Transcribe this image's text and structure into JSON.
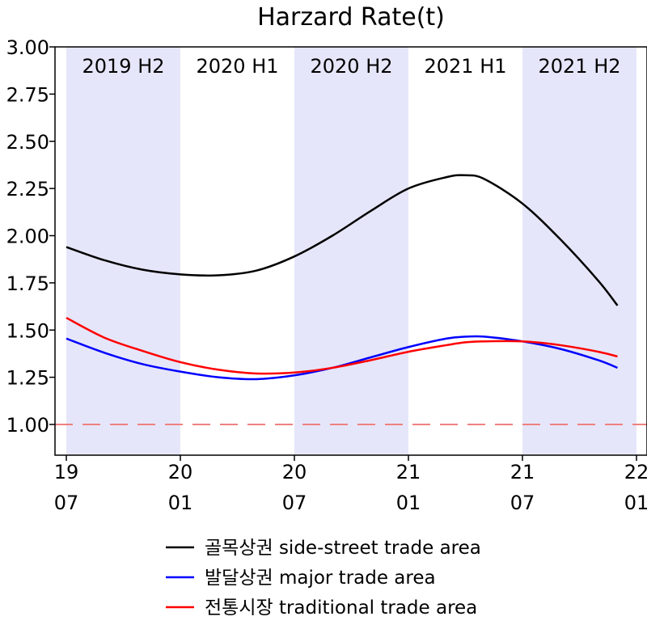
{
  "chart_data": {
    "type": "line",
    "title": "Harzard Rate(t)",
    "xlabel": "",
    "ylabel": "",
    "ylim": [
      0.85,
      3.0
    ],
    "y_ticks": [
      "3.00",
      "2.75",
      "2.50",
      "2.25",
      "2.00",
      "1.75",
      "1.50",
      "1.25",
      "1.00"
    ],
    "y_tick_values": [
      3.0,
      2.75,
      2.5,
      2.25,
      2.0,
      1.75,
      1.5,
      1.25,
      1.0
    ],
    "x_ticks": [
      {
        "top": "19",
        "bottom": "07",
        "month": 0
      },
      {
        "top": "20",
        "bottom": "01",
        "month": 6
      },
      {
        "top": "20",
        "bottom": "07",
        "month": 12
      },
      {
        "top": "21",
        "bottom": "01",
        "month": 18
      },
      {
        "top": "21",
        "bottom": "07",
        "month": 24
      },
      {
        "top": "22",
        "bottom": "01",
        "month": 30
      }
    ],
    "xlim_months": [
      -0.5,
      30.5
    ],
    "periods": [
      {
        "label": "2019 H2",
        "start": 0,
        "end": 6,
        "shaded": true
      },
      {
        "label": "2020 H1",
        "start": 6,
        "end": 12,
        "shaded": false
      },
      {
        "label": "2020 H2",
        "start": 12,
        "end": 18,
        "shaded": true
      },
      {
        "label": "2021 H1",
        "start": 18,
        "end": 24,
        "shaded": false
      },
      {
        "label": "2021 H2",
        "start": 24,
        "end": 30,
        "shaded": true
      }
    ],
    "reference_line": {
      "y": 1.0,
      "color": "#f08080",
      "style": "dashed"
    },
    "x": [
      0,
      2,
      4,
      6,
      8,
      10,
      12,
      14,
      16,
      18,
      20,
      21,
      22,
      24,
      26,
      28,
      29
    ],
    "series": [
      {
        "name": "골목상권 side-street trade area",
        "color": "#000000",
        "values": [
          1.94,
          1.87,
          1.82,
          1.795,
          1.79,
          1.815,
          1.89,
          2.0,
          2.13,
          2.25,
          2.31,
          2.32,
          2.3,
          2.17,
          1.98,
          1.76,
          1.63
        ]
      },
      {
        "name": "발달상권 major trade area",
        "color": "#0000ff",
        "values": [
          1.455,
          1.38,
          1.32,
          1.28,
          1.25,
          1.24,
          1.26,
          1.3,
          1.355,
          1.41,
          1.455,
          1.465,
          1.465,
          1.44,
          1.4,
          1.34,
          1.3
        ]
      },
      {
        "name": "전통시장 traditional trade area",
        "color": "#ff0000",
        "values": [
          1.565,
          1.46,
          1.39,
          1.33,
          1.29,
          1.27,
          1.275,
          1.3,
          1.34,
          1.385,
          1.42,
          1.435,
          1.44,
          1.44,
          1.42,
          1.385,
          1.36
        ]
      }
    ],
    "legend_position": "bottom-center",
    "grid": false
  },
  "colors": {
    "shade": "#e6e6fa",
    "axis": "#000000"
  }
}
